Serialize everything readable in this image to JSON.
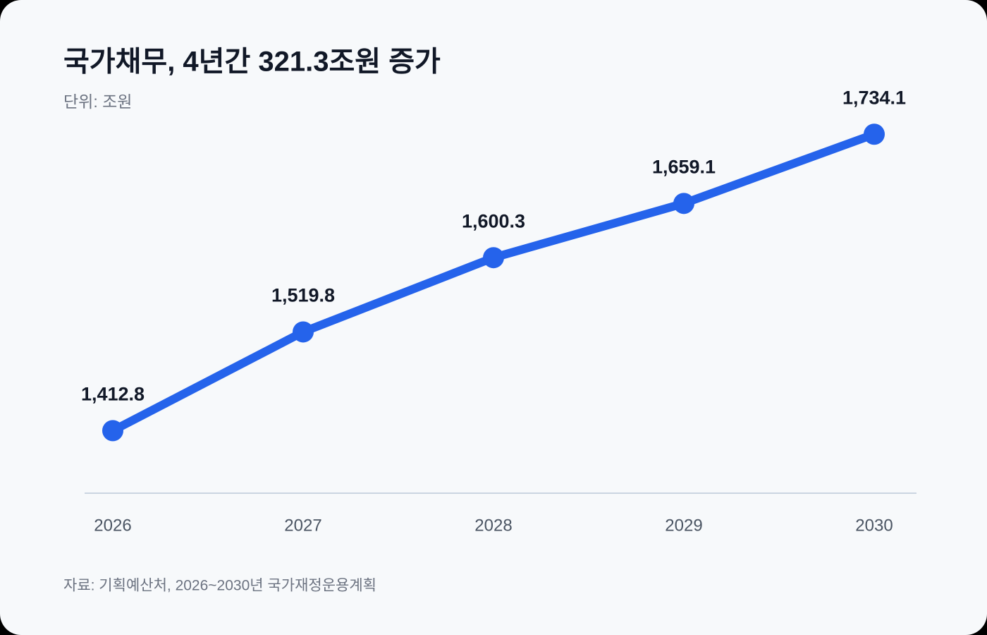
{
  "chart_data": {
    "type": "line",
    "title": "국가채무, 4년간 321.3조원 증가",
    "subtitle": "단위: 조원",
    "source": "자료: 기획예산처, 2026~2030년 국가재정운용계획",
    "categories": [
      "2026",
      "2027",
      "2028",
      "2029",
      "2030"
    ],
    "series": [
      {
        "color": "#2563eb",
        "values": [
          1412.8,
          1519.8,
          1600.3,
          1659.1,
          1734.1
        ],
        "value_labels": [
          "1,412.8",
          "1,519.8",
          "1,600.3",
          "1,659.1",
          "1,734.1"
        ]
      }
    ],
    "ylim": [
      1345,
      1745
    ]
  }
}
